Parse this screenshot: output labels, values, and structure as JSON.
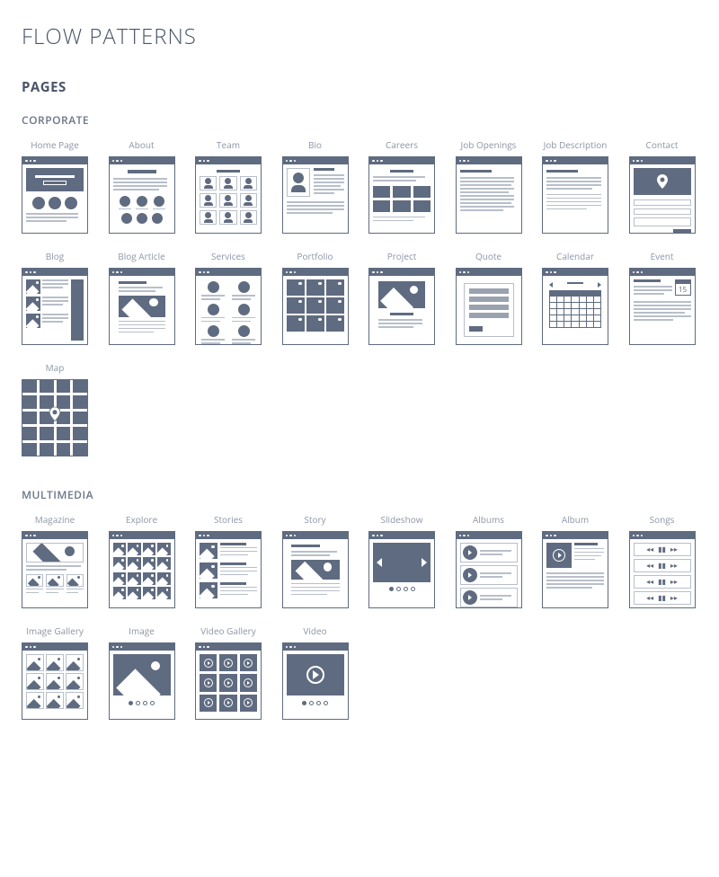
{
  "colors": {
    "text_dark": "#4a5468",
    "text_mid": "#6b7587",
    "text_light": "#8d96a6",
    "accent": "#5f6b80",
    "accent_light": "#9aa2b0",
    "line": "#b8bfca",
    "white": "#ffffff",
    "border": "#5f6b80"
  },
  "typography": {
    "title_size": 24,
    "section_size": 15,
    "cat_size": 12,
    "label_size": 10
  },
  "layout": {
    "cols": 8,
    "thumb_w": 74,
    "thumb_h": 86,
    "titlebar_h": 8
  },
  "title": "FLOW PATTERNS",
  "section": "PAGES",
  "categories": [
    {
      "name": "CORPORATE",
      "items": [
        {
          "label": "Home Page",
          "type": "homepage"
        },
        {
          "label": "About",
          "type": "about"
        },
        {
          "label": "Team",
          "type": "team"
        },
        {
          "label": "Bio",
          "type": "bio"
        },
        {
          "label": "Careers",
          "type": "careers"
        },
        {
          "label": "Job Openings",
          "type": "jobopenings"
        },
        {
          "label": "Job Description",
          "type": "jobdescription"
        },
        {
          "label": "Contact",
          "type": "contact"
        },
        {
          "label": "Blog",
          "type": "blog"
        },
        {
          "label": "Blog Article",
          "type": "blogarticle"
        },
        {
          "label": "Services",
          "type": "services"
        },
        {
          "label": "Portfolio",
          "type": "portfolio"
        },
        {
          "label": "Project",
          "type": "project"
        },
        {
          "label": "Quote",
          "type": "quote"
        },
        {
          "label": "Calendar",
          "type": "calendar"
        },
        {
          "label": "Event",
          "type": "event"
        },
        {
          "label": "Map",
          "type": "map"
        }
      ]
    },
    {
      "name": "MULTIMEDIA",
      "items": [
        {
          "label": "Magazine",
          "type": "magazine"
        },
        {
          "label": "Explore",
          "type": "explore"
        },
        {
          "label": "Stories",
          "type": "stories"
        },
        {
          "label": "Story",
          "type": "story"
        },
        {
          "label": "Slideshow",
          "type": "slideshow"
        },
        {
          "label": "Albums",
          "type": "albums"
        },
        {
          "label": "Album",
          "type": "album"
        },
        {
          "label": "Songs",
          "type": "songs"
        },
        {
          "label": "Image Gallery",
          "type": "imagegallery"
        },
        {
          "label": "Image",
          "type": "image"
        },
        {
          "label": "Video Gallery",
          "type": "videogallery"
        },
        {
          "label": "Video",
          "type": "video"
        }
      ]
    }
  ],
  "event_date": "15"
}
